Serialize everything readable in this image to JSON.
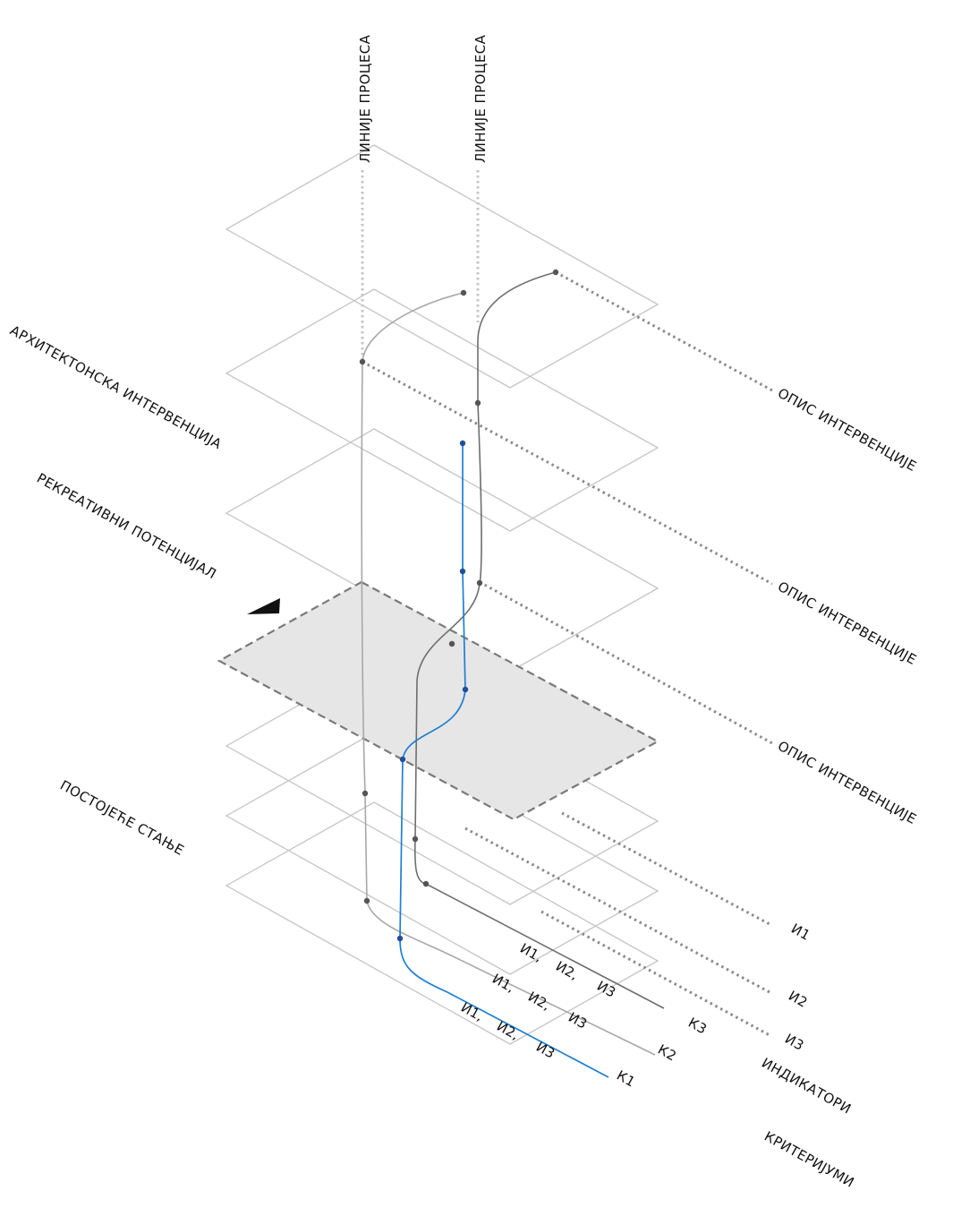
{
  "colors": {
    "plane_stroke": "#c4c4c4",
    "highlight_fill": "#e6e6e6",
    "highlight_stroke": "#7a7a7a",
    "curve_light": "#a8a8a8",
    "curve_dark": "#6e6e6e",
    "curve_blue": "#1f7fd1",
    "node_dark": "#555555",
    "node_blue": "#1f4f9a"
  },
  "labels": {
    "process_line_1": "ЛИНИЈЕ ПРОЦЕСА",
    "process_line_2": "ЛИНИЈЕ ПРОЦЕСА",
    "architectural_intervention": "АРХИТЕКТОНСКА ИНТЕРВЕНЦИЈА",
    "recreational_potential": "РЕКРЕАТИВНИ ПОТЕНЦИЈАЛ",
    "existing_state": "ПОСТОЈЕЋЕ СТАЊЕ",
    "intervention_description_1": "ОПИС ИНТЕРВЕНЦИЈЕ",
    "intervention_description_2": "ОПИС ИНТЕРВЕНЦИЈЕ",
    "intervention_description_3": "ОПИС ИНТЕРВЕНЦИЈЕ",
    "indicator_1": "И1",
    "indicator_2": "И2",
    "indicator_3": "И3",
    "indicators": "ИНДИКАТОРИ",
    "criteria": "КРИТЕРИЈУМИ",
    "criterion_1": "К1",
    "criterion_2": "К2",
    "criterion_3": "К3",
    "row_k1": [
      "И1,",
      "И2,",
      "И3"
    ],
    "row_k2": [
      "И1,",
      "И2,",
      "И3"
    ],
    "row_k3": [
      "И1,",
      "И2,",
      "И3"
    ]
  }
}
